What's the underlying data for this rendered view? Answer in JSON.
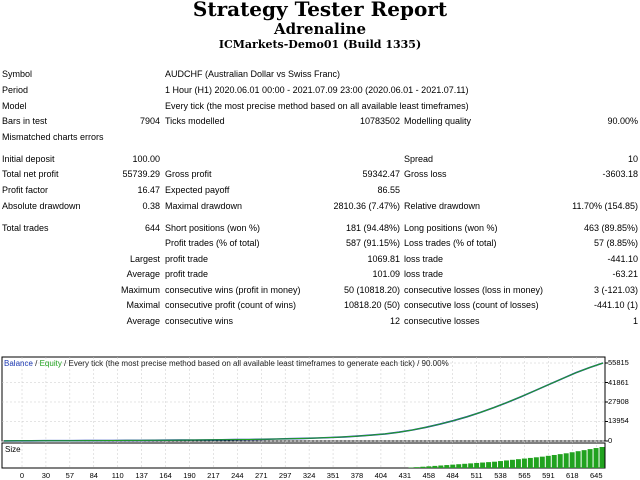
{
  "report": {
    "title": "Strategy Tester Report",
    "expert": "Adrenaline",
    "server": "ICMarkets-Demo01 (Build 1335)"
  },
  "info": {
    "symbol_label": "Symbol",
    "symbol_value": "AUDCHF (Australian Dollar vs Swiss Franc)",
    "period_label": "Period",
    "period_value": "1 Hour (H1) 2020.06.01 00:00 - 2021.07.09 23:00 (2020.06.01 - 2021.07.11)",
    "model_label": "Model",
    "model_value": "Every tick (the most precise method based on all available least timeframes)",
    "bars_label": "Bars in test",
    "bars_value": "7904",
    "ticks_label": "Ticks modelled",
    "ticks_value": "10783502",
    "quality_label": "Modelling quality",
    "quality_value": "90.00%",
    "mismatch_label": "Mismatched charts errors"
  },
  "stats": {
    "deposit_label": "Initial deposit",
    "deposit_value": "100.00",
    "spread_label": "Spread",
    "spread_value": "10",
    "net_label": "Total net profit",
    "net_value": "55739.29",
    "gross_profit_label": "Gross profit",
    "gross_profit_value": "59342.47",
    "gross_loss_label": "Gross loss",
    "gross_loss_value": "-3603.18",
    "pf_label": "Profit factor",
    "pf_value": "16.47",
    "payoff_label": "Expected payoff",
    "payoff_value": "86.55",
    "abs_dd_label": "Absolute drawdown",
    "abs_dd_value": "0.38",
    "max_dd_label": "Maximal drawdown",
    "max_dd_value": "2810.36 (7.47%)",
    "rel_dd_label": "Relative drawdown",
    "rel_dd_value": "11.70% (154.85)",
    "trades_label": "Total trades",
    "trades_value": "644",
    "short_label": "Short positions (won %)",
    "short_value": "181 (94.48%)",
    "long_label": "Long positions (won %)",
    "long_value": "463 (89.85%)",
    "profit_trades_label": "Profit trades (% of total)",
    "profit_trades_value": "587 (91.15%)",
    "loss_trades_label": "Loss trades (% of total)",
    "loss_trades_value": "57 (8.85%)",
    "largest_label": "Largest",
    "largest_profit_label": "profit trade",
    "largest_profit_value": "1069.81",
    "largest_loss_label": "loss trade",
    "largest_loss_value": "-441.10",
    "average_label": "Average",
    "average_profit_label": "profit trade",
    "average_profit_value": "101.09",
    "average_loss_label": "loss trade",
    "average_loss_value": "-63.21",
    "maximum_label": "Maximum",
    "max_cons_wins_label": "consecutive wins (profit in money)",
    "max_cons_wins_value": "50 (10818.20)",
    "max_cons_losses_label": "consecutive losses (loss in money)",
    "max_cons_losses_value": "3 (-121.03)",
    "maximal_label": "Maximal",
    "maximal_profit_label": "consecutive profit (count of wins)",
    "maximal_profit_value": "10818.20 (50)",
    "maximal_loss_label": "consecutive loss (count of losses)",
    "maximal_loss_value": "-441.10 (1)",
    "average2_label": "Average",
    "avg_cons_wins_label": "consecutive wins",
    "avg_cons_wins_value": "12",
    "avg_cons_losses_label": "consecutive losses",
    "avg_cons_losses_value": "1"
  },
  "legend": {
    "balance": "Balance",
    "sep1": " / ",
    "equity": "Equity",
    "rest": " / Every tick (the most precise method based on all available least timeframes to generate each tick) / 90.00%"
  },
  "chart_data": {
    "type": "line",
    "series": [
      {
        "name": "Balance",
        "values": [
          100,
          120,
          150,
          180,
          210,
          240,
          280,
          320,
          360,
          400,
          450,
          500,
          560,
          620,
          700,
          780,
          870,
          980,
          1100,
          1250,
          1420,
          1620,
          1860,
          2150,
          2500,
          2950,
          3500,
          4200,
          5100,
          6300,
          7900,
          9800,
          12000,
          14500,
          17300,
          20500,
          24000,
          27800,
          31800,
          36000,
          40300,
          44600,
          48800,
          52500,
          55839
        ]
      },
      {
        "name": "Equity",
        "values": [
          100,
          120,
          150,
          180,
          210,
          240,
          280,
          320,
          360,
          400,
          450,
          500,
          560,
          620,
          700,
          780,
          870,
          980,
          1100,
          1250,
          1420,
          1620,
          1860,
          2150,
          2500,
          2950,
          3500,
          4200,
          5100,
          6300,
          7900,
          9800,
          12000,
          14500,
          17300,
          20500,
          24000,
          27800,
          31800,
          36000,
          40300,
          44600,
          48800,
          52500,
          55839
        ]
      }
    ],
    "y_ticks": [
      "55815",
      "41861",
      "27908",
      "13954",
      "0"
    ],
    "x_ticks": [
      "0",
      "30",
      "57",
      "84",
      "110",
      "137",
      "164",
      "190",
      "217",
      "244",
      "271",
      "297",
      "324",
      "351",
      "378",
      "404",
      "431",
      "458",
      "484",
      "511",
      "538",
      "565",
      "591",
      "618",
      "645"
    ],
    "ylim": [
      0,
      55815
    ],
    "size_label": "Size",
    "size_bars": [
      0,
      0,
      0,
      0,
      0,
      0,
      0,
      0,
      0,
      0,
      0,
      0,
      0,
      0,
      0,
      0,
      0,
      0,
      0,
      0,
      0,
      0,
      0,
      0,
      0,
      0,
      0,
      0,
      0,
      0,
      0,
      0,
      0,
      0,
      0,
      0,
      0,
      0,
      0,
      0,
      0,
      0,
      0,
      0,
      0,
      0,
      0,
      0,
      0,
      0,
      0,
      0,
      0,
      0,
      0,
      0,
      0,
      0,
      0,
      0,
      0,
      0,
      0,
      0,
      0,
      0,
      0,
      0,
      0.02,
      0.04,
      0.06,
      0.08,
      0.1,
      0.12,
      0.14,
      0.16,
      0.18,
      0.2,
      0.22,
      0.24,
      0.26,
      0.28,
      0.3,
      0.33,
      0.36,
      0.39,
      0.42,
      0.45,
      0.48,
      0.51,
      0.54,
      0.58,
      0.62,
      0.66,
      0.7,
      0.75,
      0.8,
      0.85,
      0.9,
      0.95,
      1.0
    ],
    "colors": {
      "balance": "#1e3ab4",
      "equity": "#21a21f",
      "size": "#21a21f",
      "grid": "#c8c8c8"
    }
  }
}
